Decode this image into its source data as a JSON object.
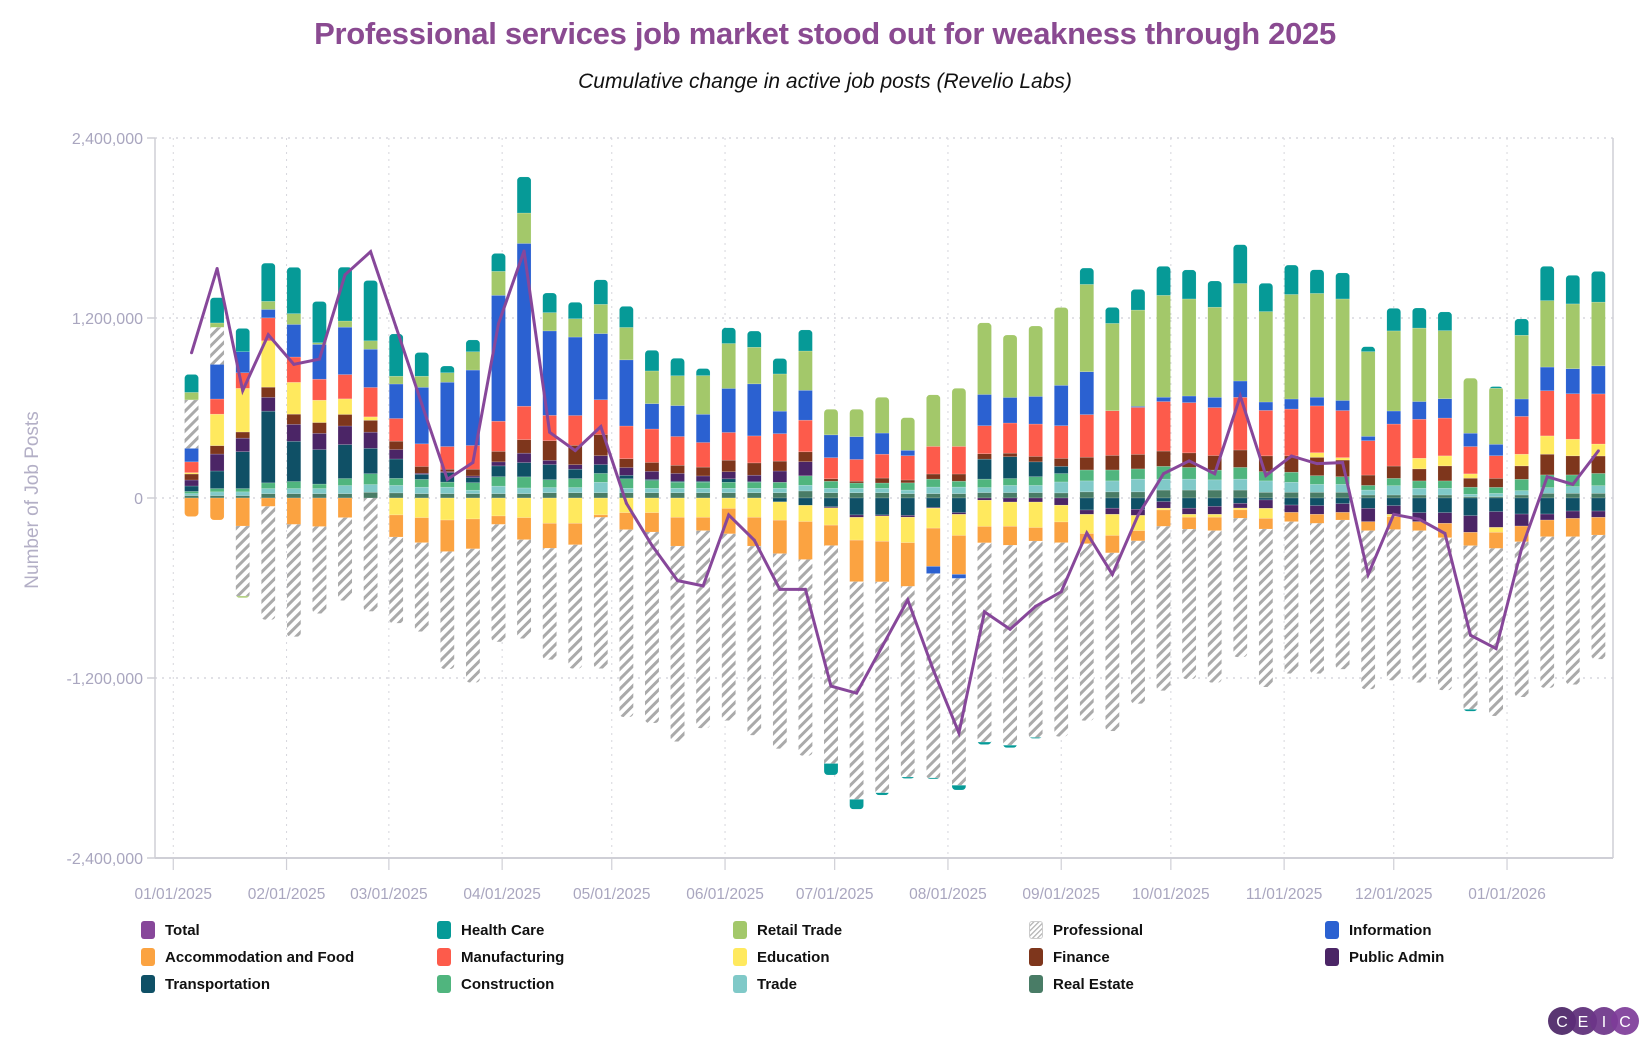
{
  "chart_data": {
    "type": "bar",
    "stacked": true,
    "title": "Professional services job market stood out for weakness through 2025",
    "subtitle": "Cumulative change in active job posts (Revelio Labs)",
    "ylabel": "Number of Job Posts",
    "ylim": [
      -2400000,
      2400000
    ],
    "yticks": [
      "2,400,000",
      "1,200,000",
      "0",
      "-1,200,000",
      "-2,400,000"
    ],
    "ytick_values": [
      2400000,
      1200000,
      0,
      -1200000,
      -2400000
    ],
    "xlim": [
      "2024-12-27",
      "2026-01-30"
    ],
    "xticks": [
      "01/01/2025",
      "02/01/2025",
      "03/01/2025",
      "04/01/2025",
      "05/01/2025",
      "06/01/2025",
      "07/01/2025",
      "08/01/2025",
      "09/01/2025",
      "10/01/2025",
      "11/01/2025",
      "12/01/2025",
      "01/01/2026"
    ],
    "xtick_dates": [
      "2025-01-01",
      "2025-02-01",
      "2025-03-01",
      "2025-04-01",
      "2025-05-01",
      "2025-06-01",
      "2025-07-01",
      "2025-08-01",
      "2025-09-01",
      "2025-10-01",
      "2025-11-01",
      "2025-12-01",
      "2026-01-01"
    ],
    "grid": true,
    "legend_position": "bottom",
    "x": [
      "2025-01-06",
      "2025-01-13",
      "2025-01-20",
      "2025-01-27",
      "2025-02-03",
      "2025-02-10",
      "2025-02-17",
      "2025-02-24",
      "2025-03-03",
      "2025-03-10",
      "2025-03-17",
      "2025-03-24",
      "2025-03-31",
      "2025-04-07",
      "2025-04-14",
      "2025-04-21",
      "2025-04-28",
      "2025-05-05",
      "2025-05-12",
      "2025-05-19",
      "2025-05-26",
      "2025-06-02",
      "2025-06-09",
      "2025-06-16",
      "2025-06-23",
      "2025-06-30",
      "2025-07-07",
      "2025-07-14",
      "2025-07-21",
      "2025-07-28",
      "2025-08-04",
      "2025-08-11",
      "2025-08-18",
      "2025-08-25",
      "2025-09-01",
      "2025-09-08",
      "2025-09-15",
      "2025-09-22",
      "2025-09-29",
      "2025-10-06",
      "2025-10-13",
      "2025-10-20",
      "2025-10-27",
      "2025-11-03",
      "2025-11-10",
      "2025-11-17",
      "2025-11-24",
      "2025-12-01",
      "2025-12-08",
      "2025-12-15",
      "2025-12-22",
      "2025-12-29",
      "2026-01-05",
      "2026-01-12",
      "2026-01-19",
      "2026-01-26"
    ],
    "line_series": {
      "name": "Total",
      "color": "#87479a",
      "values": [
        968000,
        1530000,
        716000,
        1088000,
        891000,
        926000,
        1488000,
        1642000,
        1137000,
        627000,
        124000,
        237000,
        1162000,
        1647000,
        438000,
        316000,
        476000,
        -35000,
        -316000,
        -551000,
        -586000,
        -113000,
        -281000,
        -609000,
        -609000,
        -1254000,
        -1301000,
        -990000,
        -679000,
        -1147000,
        -1566000,
        -759000,
        -875000,
        -722000,
        -625000,
        -233000,
        -509000,
        -116000,
        162000,
        247000,
        162000,
        679000,
        150000,
        280000,
        229000,
        236000,
        -510000,
        -109000,
        -142000,
        -236000,
        -915000,
        -1004000,
        -336000,
        142000,
        91000,
        314000
      ]
    },
    "series": [
      {
        "name": "Health Care",
        "color": "#069a97",
        "values": [
          120000,
          169000,
          156000,
          255000,
          309000,
          275000,
          359000,
          402000,
          282000,
          158000,
          45000,
          79000,
          120000,
          241000,
          131000,
          110000,
          164000,
          141000,
          138000,
          117000,
          47000,
          105000,
          108000,
          103000,
          141000,
          -77000,
          -66000,
          -16000,
          -10000,
          -7000,
          -32000,
          -17000,
          -17000,
          -7000,
          0,
          109000,
          107000,
          138000,
          194000,
          194000,
          175000,
          259000,
          189000,
          196000,
          158000,
          174000,
          33000,
          151000,
          134000,
          125000,
          -13000,
          11000,
          109000,
          229000,
          191000,
          205000
        ]
      },
      {
        "name": "Retail Trade",
        "color": "#a3c86a",
        "values": [
          50000,
          29000,
          -11000,
          54000,
          72000,
          11000,
          41000,
          56000,
          52000,
          74000,
          63000,
          122000,
          160000,
          203000,
          122000,
          122000,
          195000,
          216000,
          218000,
          199000,
          258000,
          300000,
          244000,
          248000,
          262000,
          171000,
          183000,
          239000,
          218000,
          344000,
          388000,
          478000,
          417000,
          470000,
          519000,
          582000,
          582000,
          642000,
          679000,
          647000,
          601000,
          650000,
          603000,
          697000,
          692000,
          677000,
          565000,
          534000,
          490000,
          454000,
          367000,
          374000,
          425000,
          443000,
          432000,
          425000
        ]
      },
      {
        "name": "Professional",
        "color": "#aaaaaa",
        "pattern": "hatch",
        "values": [
          323000,
          248000,
          -467000,
          -756000,
          -749000,
          -580000,
          -553000,
          -756000,
          -575000,
          -593000,
          -783000,
          -891000,
          -783000,
          -659000,
          -743000,
          -825000,
          -1008000,
          -1249000,
          -1273000,
          -1303000,
          -1317000,
          -1245000,
          -1261000,
          -1301000,
          -1308000,
          -1453000,
          -1451000,
          -1406000,
          -1271000,
          -1362000,
          -1379000,
          -1328000,
          -1333000,
          -1309000,
          -1292000,
          -1180000,
          -1188000,
          -1086000,
          -1096000,
          -999000,
          -1013000,
          -926000,
          -1053000,
          -1013000,
          -1002000,
          -995000,
          -1057000,
          -1006000,
          -1013000,
          -1017000,
          -1091000,
          -1117000,
          -1035000,
          -1008000,
          -986000,
          -828000
        ]
      },
      {
        "name": "Information",
        "color": "#2b61d1",
        "values": [
          90000,
          230000,
          140000,
          56000,
          217000,
          232000,
          316000,
          255000,
          230000,
          377000,
          429000,
          503000,
          839000,
          1085000,
          563000,
          523000,
          441000,
          441000,
          169000,
          206000,
          188000,
          293000,
          347000,
          150000,
          199000,
          152000,
          152000,
          141000,
          36000,
          -48000,
          -27000,
          208000,
          170000,
          184000,
          269000,
          286000,
          0,
          7000,
          29000,
          44000,
          68000,
          109000,
          56000,
          67000,
          58000,
          67000,
          29000,
          87000,
          118000,
          129000,
          89000,
          76000,
          116000,
          158000,
          167000,
          187000
        ]
      },
      {
        "name": "Accommodation and Food",
        "color": "#fba341",
        "values": [
          -124000,
          -147000,
          -187000,
          -56000,
          -176000,
          -190000,
          -131000,
          0,
          -147000,
          -167000,
          -210000,
          -199000,
          -56000,
          -147000,
          -166000,
          -143000,
          -16000,
          -113000,
          -129000,
          -192000,
          -89000,
          -169000,
          -192000,
          -223000,
          -253000,
          -136000,
          -277000,
          -270000,
          -291000,
          -255000,
          -259000,
          -109000,
          -126000,
          -90000,
          -138000,
          -68000,
          -116000,
          -68000,
          -109000,
          -80000,
          -90000,
          -56000,
          -71000,
          -62000,
          -60000,
          -51000,
          -60000,
          -85000,
          -60000,
          -96000,
          -89000,
          -107000,
          -105000,
          -111000,
          -122000,
          -118000
        ]
      },
      {
        "name": "Manufacturing",
        "color": "#fd5b4b",
        "values": [
          72000,
          101000,
          104000,
          153000,
          169000,
          140000,
          162000,
          196000,
          151000,
          151000,
          151000,
          158000,
          201000,
          223000,
          169000,
          199000,
          232000,
          218000,
          223000,
          192000,
          164000,
          185000,
          180000,
          183000,
          211000,
          141000,
          145000,
          159000,
          162000,
          184000,
          184000,
          187000,
          201000,
          216000,
          218000,
          284000,
          298000,
          313000,
          330000,
          335000,
          320000,
          351000,
          303000,
          312000,
          312000,
          314000,
          229000,
          280000,
          260000,
          252000,
          182000,
          151000,
          252000,
          301000,
          303000,
          334000
        ]
      },
      {
        "name": "Education",
        "color": "#ffe95e",
        "values": [
          9000,
          210000,
          291000,
          309000,
          212000,
          149000,
          104000,
          23000,
          -113000,
          -131000,
          -147000,
          -140000,
          -120000,
          -131000,
          -169000,
          -169000,
          -113000,
          -98000,
          -98000,
          -129000,
          -129000,
          -70000,
          -129000,
          -122000,
          -108000,
          -115000,
          -152000,
          -169000,
          -170000,
          -133000,
          -141000,
          -175000,
          -162000,
          -170000,
          -112000,
          -128000,
          -141000,
          -102000,
          -12000,
          -19000,
          -19000,
          -12000,
          -67000,
          0,
          31000,
          16000,
          0,
          -16000,
          71000,
          67000,
          29000,
          -33000,
          78000,
          122000,
          111000,
          80000
        ]
      },
      {
        "name": "Finance",
        "color": "#7e361c",
        "values": [
          40000,
          56000,
          41000,
          68000,
          68000,
          72000,
          77000,
          79000,
          56000,
          45000,
          16000,
          45000,
          70000,
          90000,
          131000,
          129000,
          141000,
          59000,
          59000,
          54000,
          59000,
          77000,
          82000,
          66000,
          66000,
          16000,
          12000,
          33000,
          19000,
          34000,
          48000,
          36000,
          24000,
          36000,
          53000,
          85000,
          97000,
          97000,
          102000,
          97000,
          97000,
          116000,
          105000,
          109000,
          122000,
          111000,
          69000,
          82000,
          80000,
          100000,
          60000,
          60000,
          89000,
          138000,
          127000,
          116000
        ]
      },
      {
        "name": "Public Admin",
        "color": "#4b2566",
        "values": [
          40000,
          113000,
          90000,
          92000,
          113000,
          108000,
          124000,
          108000,
          63000,
          7000,
          7000,
          11000,
          27000,
          63000,
          28000,
          30000,
          59000,
          52000,
          54000,
          52000,
          35000,
          47000,
          42000,
          75000,
          94000,
          -7000,
          -16000,
          -7000,
          -12000,
          -5000,
          -12000,
          -15000,
          -27000,
          -27000,
          -48000,
          -29000,
          -41000,
          -41000,
          -44000,
          -41000,
          -53000,
          -31000,
          -56000,
          -49000,
          -58000,
          -58000,
          -89000,
          -58000,
          -60000,
          -71000,
          -111000,
          -105000,
          -80000,
          -40000,
          -49000,
          -42000
        ]
      },
      {
        "name": "Transportation",
        "color": "#0f5066",
        "values": [
          36000,
          117000,
          246000,
          478000,
          268000,
          230000,
          226000,
          169000,
          129000,
          34000,
          63000,
          34000,
          72000,
          95000,
          101000,
          63000,
          59000,
          23000,
          7000,
          7000,
          7000,
          23000,
          5000,
          -26000,
          -49000,
          -59000,
          -113000,
          -113000,
          -116000,
          -63000,
          -97000,
          133000,
          145000,
          99000,
          48000,
          -80000,
          -68000,
          -75000,
          -24000,
          -68000,
          -56000,
          -36000,
          -13000,
          -47000,
          -51000,
          -38000,
          -69000,
          -51000,
          -98000,
          -98000,
          -118000,
          -91000,
          -107000,
          -107000,
          -87000,
          -87000
        ]
      },
      {
        "name": "Construction",
        "color": "#50b57e",
        "values": [
          14000,
          22000,
          22000,
          38000,
          47000,
          30000,
          47000,
          72000,
          47000,
          52000,
          34000,
          50000,
          63000,
          74000,
          52000,
          59000,
          59000,
          63000,
          52000,
          40000,
          40000,
          40000,
          40000,
          40000,
          63000,
          47000,
          35000,
          35000,
          48000,
          53000,
          39000,
          56000,
          46000,
          58000,
          56000,
          73000,
          73000,
          68000,
          85000,
          78000,
          65000,
          78000,
          62000,
          67000,
          58000,
          51000,
          31000,
          49000,
          49000,
          49000,
          47000,
          40000,
          76000,
          85000,
          78000,
          82000
        ]
      },
      {
        "name": "Trade",
        "color": "#80c9c8",
        "values": [
          14000,
          25000,
          25000,
          34000,
          34000,
          34000,
          54000,
          52000,
          50000,
          43000,
          43000,
          23000,
          50000,
          38000,
          35000,
          35000,
          70000,
          30000,
          30000,
          30000,
          30000,
          30000,
          30000,
          30000,
          38000,
          30000,
          30000,
          30000,
          24000,
          44000,
          44000,
          34000,
          48000,
          48000,
          73000,
          73000,
          73000,
          85000,
          73000,
          73000,
          68000,
          73000,
          76000,
          67000,
          53000,
          53000,
          33000,
          62000,
          45000,
          45000,
          16000,
          22000,
          29000,
          38000,
          45000,
          51000
        ]
      },
      {
        "name": "Real Estate",
        "color": "#497c66",
        "values": [
          16000,
          16000,
          16000,
          29000,
          29000,
          29000,
          29000,
          38000,
          34000,
          29000,
          29000,
          29000,
          29000,
          29000,
          35000,
          35000,
          35000,
          35000,
          35000,
          35000,
          35000,
          35000,
          35000,
          35000,
          47000,
          35000,
          35000,
          35000,
          29000,
          29000,
          29000,
          36000,
          36000,
          36000,
          34000,
          41000,
          41000,
          41000,
          53000,
          53000,
          53000,
          53000,
          38000,
          38000,
          38000,
          38000,
          20000,
          20000,
          20000,
          20000,
          9000,
          9000,
          20000,
          31000,
          31000,
          31000
        ]
      }
    ]
  },
  "legend": [
    {
      "label": "Total",
      "color": "#87479a"
    },
    {
      "label": "Health Care",
      "color": "#069a97"
    },
    {
      "label": "Retail Trade",
      "color": "#a3c86a"
    },
    {
      "label": "Professional",
      "color": "#aaaaaa",
      "pattern": "hatch"
    },
    {
      "label": "Information",
      "color": "#2b61d1"
    },
    {
      "label": "Accommodation and Food",
      "color": "#fba341"
    },
    {
      "label": "Manufacturing",
      "color": "#fd5b4b"
    },
    {
      "label": "Education",
      "color": "#ffe95e"
    },
    {
      "label": "Finance",
      "color": "#7e361c"
    },
    {
      "label": "Public Admin",
      "color": "#4b2566"
    },
    {
      "label": "Transportation",
      "color": "#0f5066"
    },
    {
      "label": "Construction",
      "color": "#50b57e"
    },
    {
      "label": "Trade",
      "color": "#80c9c8"
    },
    {
      "label": "Real Estate",
      "color": "#497c66"
    }
  ],
  "logo": {
    "text": "CEIC",
    "letters": [
      "C",
      "E",
      "I",
      "C"
    ],
    "colors": [
      "#4b2566",
      "#5c2d78",
      "#6d3489",
      "#7e3c99"
    ]
  }
}
